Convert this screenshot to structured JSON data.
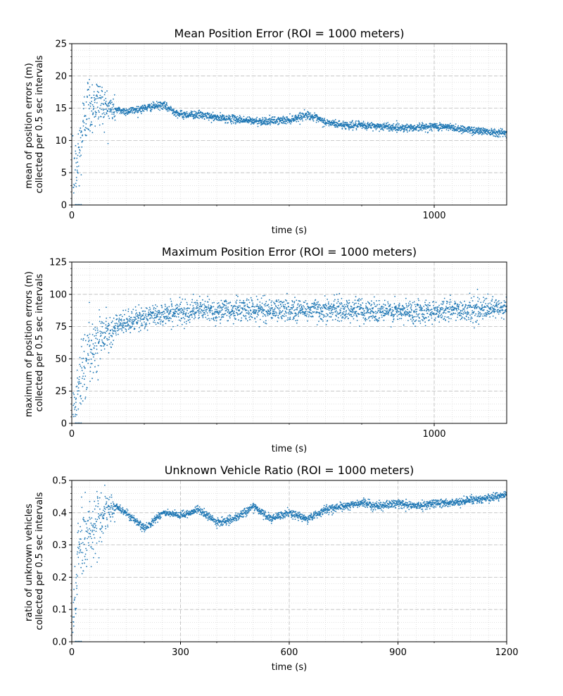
{
  "chart_data": [
    {
      "type": "scatter",
      "title": "Mean Position Error (ROI = 1000 meters)",
      "xlabel": "time (s)",
      "ylabel": [
        "mean of position errors (m)",
        "collected per 0.5 sec intervals"
      ],
      "xlim": [
        0,
        1200
      ],
      "ylim": [
        0,
        25
      ],
      "xticks": [
        0,
        1000
      ],
      "yticks": [
        0,
        5,
        10,
        15,
        20,
        25
      ],
      "grid": true,
      "color": "#1f77b4",
      "trend": [
        [
          0,
          0
        ],
        [
          20,
          8
        ],
        [
          40,
          15
        ],
        [
          70,
          16
        ],
        [
          100,
          15
        ],
        [
          150,
          14.5
        ],
        [
          200,
          15
        ],
        [
          250,
          15.5
        ],
        [
          300,
          14
        ],
        [
          350,
          14
        ],
        [
          400,
          13.5
        ],
        [
          450,
          13.3
        ],
        [
          500,
          13
        ],
        [
          550,
          13
        ],
        [
          600,
          13.2
        ],
        [
          650,
          14
        ],
        [
          700,
          12.8
        ],
        [
          750,
          12.4
        ],
        [
          800,
          12.3
        ],
        [
          850,
          12.2
        ],
        [
          900,
          12
        ],
        [
          950,
          12
        ],
        [
          1000,
          12.2
        ],
        [
          1050,
          12
        ],
        [
          1100,
          11.6
        ],
        [
          1150,
          11.4
        ],
        [
          1200,
          11.1
        ]
      ]
    },
    {
      "type": "scatter",
      "title": "Maximum Position Error (ROI = 1000 meters)",
      "xlabel": "time (s)",
      "ylabel": [
        "maximum of position errors (m)",
        "collected per 0.5 sec intervals"
      ],
      "xlim": [
        0,
        1200
      ],
      "ylim": [
        0,
        125
      ],
      "xticks": [
        0,
        1000
      ],
      "yticks": [
        0,
        25,
        50,
        75,
        100,
        125
      ],
      "grid": true,
      "color": "#1f77b4",
      "trend": [
        [
          0,
          0
        ],
        [
          20,
          30
        ],
        [
          40,
          50
        ],
        [
          60,
          60
        ],
        [
          80,
          68
        ],
        [
          100,
          72
        ],
        [
          150,
          78
        ],
        [
          200,
          82
        ],
        [
          250,
          85
        ],
        [
          300,
          86
        ],
        [
          350,
          88
        ],
        [
          400,
          87
        ],
        [
          450,
          88
        ],
        [
          500,
          88
        ],
        [
          550,
          88
        ],
        [
          600,
          88
        ],
        [
          650,
          88
        ],
        [
          700,
          88
        ],
        [
          750,
          88
        ],
        [
          800,
          88
        ],
        [
          850,
          87
        ],
        [
          900,
          86
        ],
        [
          950,
          87
        ],
        [
          1000,
          87
        ],
        [
          1050,
          88
        ],
        [
          1100,
          88
        ],
        [
          1150,
          88
        ],
        [
          1200,
          89
        ]
      ]
    },
    {
      "type": "scatter",
      "title": "Unknown Vehicle Ratio (ROI = 1000 meters)",
      "xlabel": "time (s)",
      "ylabel": [
        "ratio of unknown vehicles",
        "collected per 0.5 sec intervals"
      ],
      "xlim": [
        0,
        1200
      ],
      "ylim": [
        0,
        0.5
      ],
      "xticks": [
        0,
        300,
        600,
        900,
        1200
      ],
      "yticks": [
        0.0,
        0.1,
        0.2,
        0.3,
        0.4,
        0.5
      ],
      "ytick_labels": [
        "0.0",
        "0.1",
        "0.2",
        "0.3",
        "0.4",
        "0.5"
      ],
      "grid": true,
      "color": "#1f77b4",
      "trend": [
        [
          0,
          0
        ],
        [
          20,
          0.3
        ],
        [
          40,
          0.33
        ],
        [
          60,
          0.36
        ],
        [
          80,
          0.38
        ],
        [
          100,
          0.4
        ],
        [
          120,
          0.42
        ],
        [
          150,
          0.4
        ],
        [
          180,
          0.37
        ],
        [
          200,
          0.35
        ],
        [
          220,
          0.37
        ],
        [
          250,
          0.4
        ],
        [
          300,
          0.39
        ],
        [
          350,
          0.41
        ],
        [
          400,
          0.37
        ],
        [
          450,
          0.38
        ],
        [
          500,
          0.42
        ],
        [
          550,
          0.38
        ],
        [
          600,
          0.4
        ],
        [
          650,
          0.38
        ],
        [
          700,
          0.41
        ],
        [
          750,
          0.42
        ],
        [
          800,
          0.43
        ],
        [
          850,
          0.42
        ],
        [
          900,
          0.43
        ],
        [
          950,
          0.42
        ],
        [
          1000,
          0.43
        ],
        [
          1050,
          0.43
        ],
        [
          1100,
          0.44
        ],
        [
          1150,
          0.445
        ],
        [
          1200,
          0.455
        ]
      ]
    }
  ]
}
